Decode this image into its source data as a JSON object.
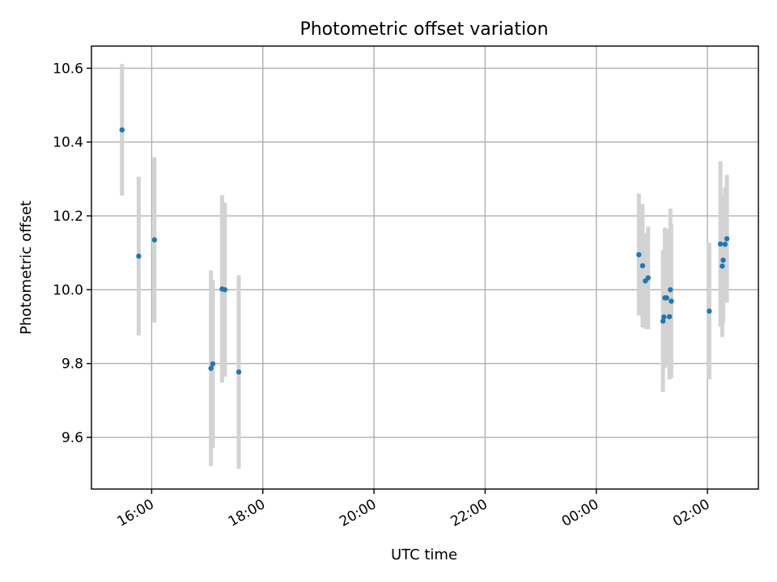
{
  "chart_data": {
    "type": "scatter",
    "title": "Photometric offset variation",
    "xlabel": "UTC time",
    "ylabel": "Photometric offset",
    "x_type": "time",
    "xlim": [
      "2023-01-01T14:55",
      "2023-01-02T02:55"
    ],
    "ylim": [
      9.46,
      10.66
    ],
    "x_ticks": [
      {
        "value": "2023-01-01T16:00",
        "label": "16:00"
      },
      {
        "value": "2023-01-01T18:00",
        "label": "18:00"
      },
      {
        "value": "2023-01-01T20:00",
        "label": "20:00"
      },
      {
        "value": "2023-01-01T22:00",
        "label": "22:00"
      },
      {
        "value": "2023-01-02T00:00",
        "label": "00:00"
      },
      {
        "value": "2023-01-02T02:00",
        "label": "02:00"
      }
    ],
    "y_ticks": [
      {
        "value": 9.6,
        "label": "9.6"
      },
      {
        "value": 9.8,
        "label": "9.8"
      },
      {
        "value": 10.0,
        "label": "10.0"
      },
      {
        "value": 10.2,
        "label": "10.2"
      },
      {
        "value": 10.4,
        "label": "10.4"
      },
      {
        "value": 10.6,
        "label": "10.6"
      }
    ],
    "grid": true,
    "point_color": "#1f77b4",
    "errorbar_color": "#d3d3d3",
    "points": [
      {
        "x": "2023-01-01T15:28",
        "y": 10.433,
        "err": 0.178
      },
      {
        "x": "2023-01-01T15:46",
        "y": 10.091,
        "err": 0.215
      },
      {
        "x": "2023-01-01T16:03",
        "y": 10.135,
        "err": 0.224
      },
      {
        "x": "2023-01-01T17:04",
        "y": 9.787,
        "err": 0.265
      },
      {
        "x": "2023-01-01T17:06",
        "y": 9.799,
        "err": 0.227
      },
      {
        "x": "2023-01-01T17:16",
        "y": 10.002,
        "err": 0.254
      },
      {
        "x": "2023-01-01T17:19",
        "y": 10.0,
        "err": 0.236
      },
      {
        "x": "2023-01-01T17:34",
        "y": 9.777,
        "err": 0.262
      },
      {
        "x": "2023-01-02T00:46",
        "y": 10.095,
        "err": 0.165
      },
      {
        "x": "2023-01-02T00:50",
        "y": 10.065,
        "err": 0.167
      },
      {
        "x": "2023-01-02T00:53",
        "y": 10.024,
        "err": 0.13
      },
      {
        "x": "2023-01-02T00:56",
        "y": 10.032,
        "err": 0.139
      },
      {
        "x": "2023-01-02T01:12",
        "y": 9.915,
        "err": 0.192
      },
      {
        "x": "2023-01-02T01:13",
        "y": 9.926,
        "err": 0.116
      },
      {
        "x": "2023-01-02T01:14",
        "y": 9.978,
        "err": 0.19
      },
      {
        "x": "2023-01-02T01:16",
        "y": 9.978,
        "err": 0.186
      },
      {
        "x": "2023-01-02T01:19",
        "y": 9.927,
        "err": 0.17
      },
      {
        "x": "2023-01-02T01:20",
        "y": 10.0,
        "err": 0.22
      },
      {
        "x": "2023-01-02T01:21",
        "y": 9.969,
        "err": 0.208
      },
      {
        "x": "2023-01-02T02:02",
        "y": 9.942,
        "err": 0.185
      },
      {
        "x": "2023-01-02T02:14",
        "y": 10.124,
        "err": 0.224
      },
      {
        "x": "2023-01-02T02:16",
        "y": 10.064,
        "err": 0.192
      },
      {
        "x": "2023-01-02T02:17",
        "y": 10.08,
        "err": 0.17
      },
      {
        "x": "2023-01-02T02:19",
        "y": 10.123,
        "err": 0.155
      },
      {
        "x": "2023-01-02T02:21",
        "y": 10.138,
        "err": 0.173
      }
    ]
  }
}
